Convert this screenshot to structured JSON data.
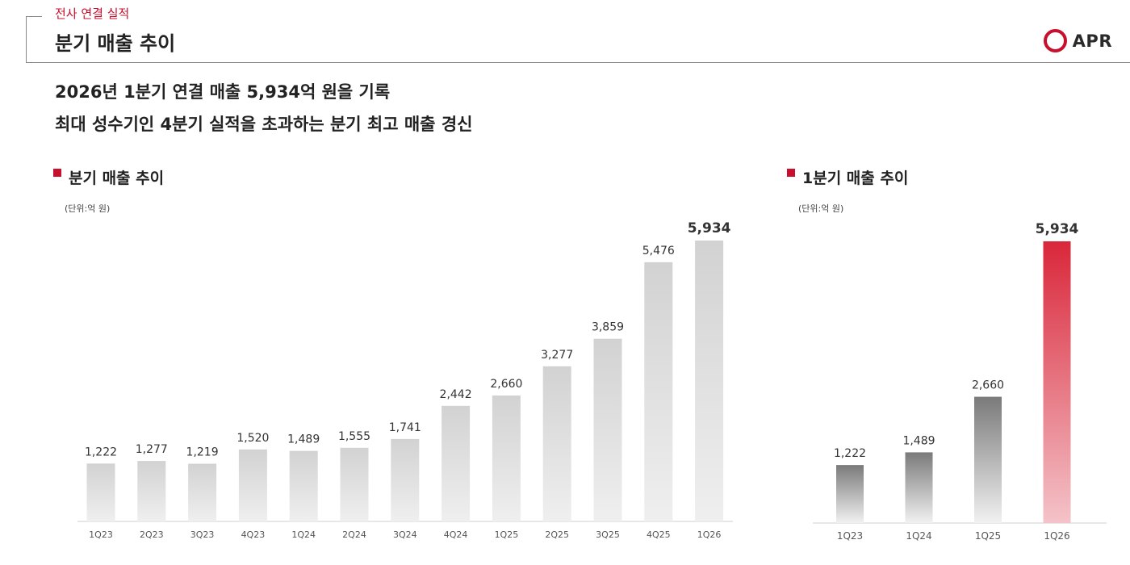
{
  "header": {
    "section_label": "전사 연결 실적",
    "title": "분기 매출 추이",
    "logo_text": "APR",
    "brand_color": "#c8102e"
  },
  "headline": {
    "line1": "2026년 1분기 연결 매출 5,934억 원을 기록",
    "line2": "최대 성수기인 4분기 실적을 초과하는 분기 최고 매출 경신"
  },
  "chart_data": [
    {
      "type": "bar",
      "title": "분기 매출 추이",
      "unit": "(단위:억 원)",
      "categories": [
        "1Q23",
        "2Q23",
        "3Q23",
        "4Q23",
        "1Q24",
        "2Q24",
        "3Q24",
        "4Q24",
        "1Q25",
        "2Q25",
        "3Q25",
        "4Q25",
        "1Q26"
      ],
      "values": [
        1222,
        1277,
        1219,
        1520,
        1489,
        1555,
        1741,
        2442,
        2660,
        3277,
        3859,
        5476,
        5934
      ],
      "value_labels": [
        "1,222",
        "1,277",
        "1,219",
        "1,520",
        "1,489",
        "1,555",
        "1,741",
        "2,442",
        "2,660",
        "3,277",
        "3,859",
        "5,476",
        "5,934"
      ],
      "highlight_last": true,
      "bar_color": "gray-gradient",
      "ylim": [
        0,
        5934
      ],
      "grid": false
    },
    {
      "type": "bar",
      "title": "1분기 매출 추이",
      "unit": "(단위:억 원)",
      "categories": [
        "1Q23",
        "1Q24",
        "1Q25",
        "1Q26"
      ],
      "values": [
        1222,
        1489,
        2660,
        5934
      ],
      "value_labels": [
        "1,222",
        "1,489",
        "2,660",
        "5,934"
      ],
      "highlight_last": true,
      "bar_color": "dark-gray-gradient",
      "highlight_color": "#d9273a",
      "ylim": [
        0,
        5934
      ],
      "grid": false
    }
  ]
}
